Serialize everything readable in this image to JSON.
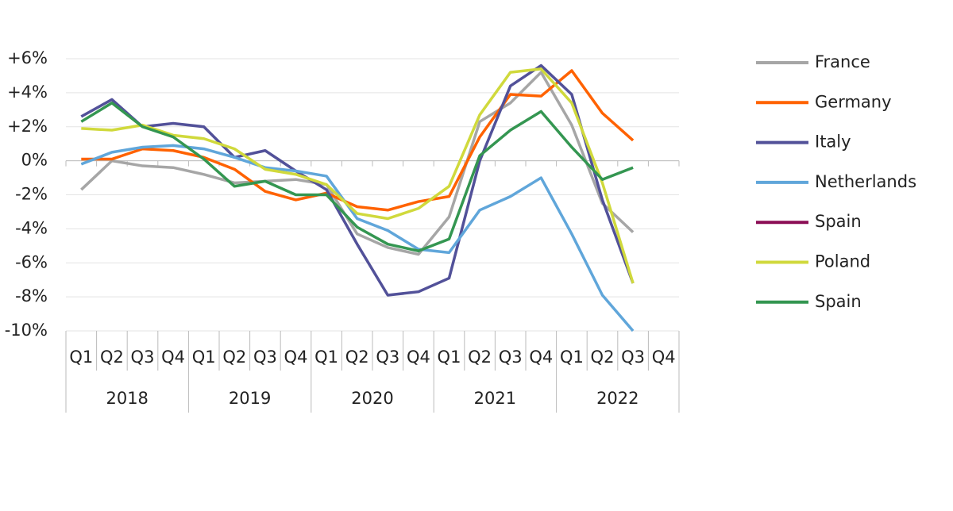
{
  "chart_data": {
    "type": "line",
    "categories": [
      "Q1",
      "Q2",
      "Q3",
      "Q4",
      "Q1",
      "Q2",
      "Q3",
      "Q4",
      "Q1",
      "Q2",
      "Q3",
      "Q4",
      "Q1",
      "Q2",
      "Q3",
      "Q4",
      "Q1",
      "Q2",
      "Q3",
      "Q4"
    ],
    "years": [
      "2018",
      "2019",
      "2020",
      "2021",
      "2022"
    ],
    "ylim": [
      -10,
      6
    ],
    "yticks": [
      {
        "value": 6,
        "label": "+6%"
      },
      {
        "value": 4,
        "label": "+4%"
      },
      {
        "value": 2,
        "label": "+2%"
      },
      {
        "value": 0,
        "label": "0%"
      },
      {
        "value": -2,
        "label": "-2%"
      },
      {
        "value": -4,
        "label": "-4%"
      },
      {
        "value": -6,
        "label": "-6%"
      },
      {
        "value": -8,
        "label": "-8%"
      },
      {
        "value": -10,
        "label": "-10%"
      }
    ],
    "grid": true,
    "legend": "right",
    "series": [
      {
        "name": "France",
        "color": "#a6a6a6",
        "values": [
          -1.7,
          0.0,
          -0.3,
          -0.4,
          -0.8,
          -1.3,
          -1.2,
          -1.1,
          -1.4,
          -4.3,
          -5.1,
          -5.5,
          -3.3,
          2.3,
          3.4,
          5.2,
          2.1,
          -2.5,
          -4.2,
          null
        ]
      },
      {
        "name": "Germany",
        "color": "#ff6200",
        "values": [
          0.1,
          0.1,
          0.7,
          0.6,
          0.2,
          -0.5,
          -1.8,
          -2.3,
          -1.9,
          -2.7,
          -2.9,
          -2.4,
          -2.1,
          1.4,
          3.9,
          3.8,
          5.3,
          2.8,
          1.2,
          null
        ]
      },
      {
        "name": "Italy",
        "color": "#525199",
        "values": [
          2.6,
          3.6,
          2.0,
          2.2,
          2.0,
          0.2,
          0.6,
          -0.6,
          -1.7,
          -4.9,
          -7.9,
          -7.7,
          -6.9,
          0.0,
          4.4,
          5.6,
          3.9,
          -2.3,
          -7.2,
          null
        ]
      },
      {
        "name": "Netherlands",
        "color": "#60a6da",
        "values": [
          -0.2,
          0.5,
          0.8,
          0.9,
          0.7,
          0.2,
          -0.4,
          -0.6,
          -0.9,
          -3.4,
          -4.1,
          -5.2,
          -5.4,
          -2.9,
          -2.1,
          -1.0,
          -4.3,
          -7.9,
          -10.0,
          null
        ]
      },
      {
        "name": "Spain",
        "color": "#8b0d55",
        "values": [
          null,
          null,
          null,
          null,
          null,
          null,
          null,
          null,
          null,
          null,
          null,
          null,
          null,
          null,
          null,
          null,
          null,
          null,
          null,
          null
        ]
      },
      {
        "name": "Poland",
        "color": "#d0d93c",
        "values": [
          1.9,
          1.8,
          2.1,
          1.5,
          1.3,
          0.7,
          -0.5,
          -0.8,
          -1.4,
          -3.1,
          -3.4,
          -2.8,
          -1.5,
          2.7,
          5.2,
          5.4,
          3.4,
          -1.3,
          -7.2,
          null
        ]
      },
      {
        "name": "Spain",
        "color": "#349651",
        "values": [
          2.3,
          3.4,
          2.0,
          1.4,
          0.1,
          -1.5,
          -1.2,
          -2.0,
          -2.0,
          -3.9,
          -4.9,
          -5.3,
          -4.6,
          0.3,
          1.8,
          2.9,
          0.8,
          -1.1,
          -0.4,
          null
        ]
      }
    ]
  }
}
